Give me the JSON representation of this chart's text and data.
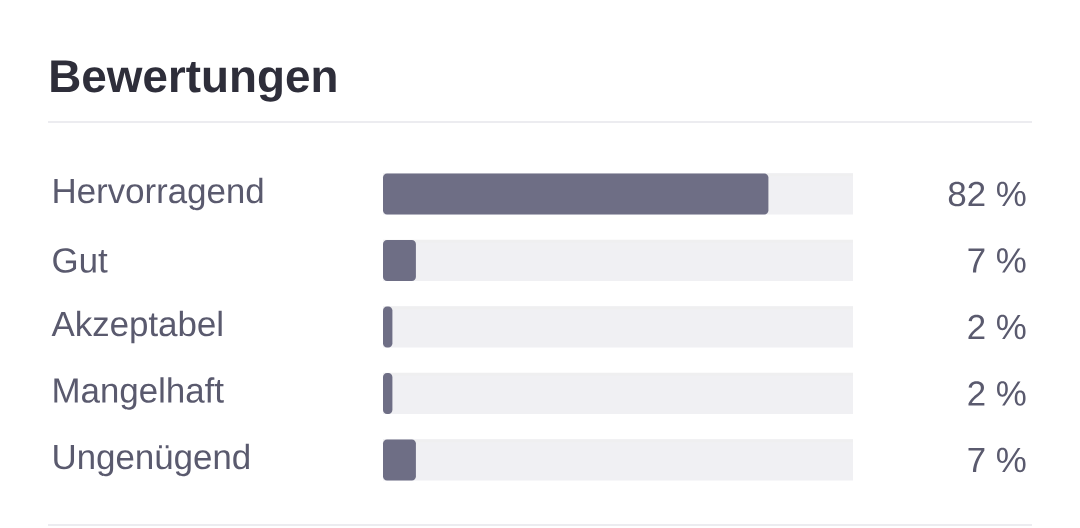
{
  "chart_data": {
    "type": "bar",
    "title": "Bewertungen",
    "orientation": "horizontal",
    "categories": [
      "Hervorragend",
      "Gut",
      "Akzeptabel",
      "Mangelhaft",
      "Ungenügend"
    ],
    "values": [
      82,
      7,
      2,
      2,
      7
    ],
    "value_labels": [
      "82 %",
      "7 %",
      "2 %",
      "2 %",
      "7 %"
    ],
    "color": "#6e6e85",
    "xlim": [
      0,
      100
    ]
  }
}
